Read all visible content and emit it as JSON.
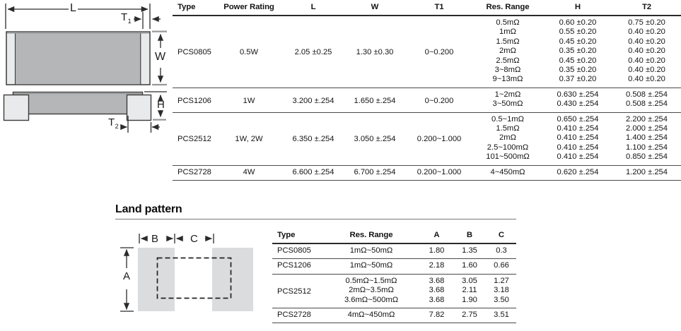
{
  "chip_diagram": {
    "l_label": "L",
    "t1_base": "T",
    "t1_sub": "1",
    "w_label": "W",
    "h_label": "H",
    "t2_base": "T",
    "t2_sub": "2"
  },
  "spec_table": {
    "headers": [
      "Type",
      "Power Rating",
      "L",
      "W",
      "T1",
      "Res. Range",
      "H",
      "T2"
    ],
    "groups": [
      {
        "type": "PCS0805",
        "power_rating": "0.5W",
        "l": "2.05 ±0.25",
        "w": "1.30 ±0.30",
        "t1": "0~0.200",
        "rows": [
          {
            "res_range": "0.5mΩ",
            "h": "0.60 ±0.20",
            "t2": "0.75 ±0.20"
          },
          {
            "res_range": "1mΩ",
            "h": "0.55 ±0.20",
            "t2": "0.40 ±0.20"
          },
          {
            "res_range": "1.5mΩ",
            "h": "0.45 ±0.20",
            "t2": "0.40 ±0.20"
          },
          {
            "res_range": "2mΩ",
            "h": "0.35 ±0.20",
            "t2": "0.40 ±0.20"
          },
          {
            "res_range": "2.5mΩ",
            "h": "0.45 ±0.20",
            "t2": "0.40 ±0.20"
          },
          {
            "res_range": "3~8mΩ",
            "h": "0.35 ±0.20",
            "t2": "0.40 ±0.20"
          },
          {
            "res_range": "9~13mΩ",
            "h": "0.37 ±0.20",
            "t2": "0.40 ±0.20"
          }
        ]
      },
      {
        "type": "PCS1206",
        "power_rating": "1W",
        "l": "3.200 ±.254",
        "w": "1.650 ±.254",
        "t1": "0~0.200",
        "rows": [
          {
            "res_range": "1~2mΩ",
            "h": "0.630 ±.254",
            "t2": "0.508 ±.254"
          },
          {
            "res_range": "3~50mΩ",
            "h": "0.430 ±.254",
            "t2": "0.508 ±.254"
          }
        ]
      },
      {
        "type": "PCS2512",
        "power_rating": "1W, 2W",
        "l": "6.350 ±.254",
        "w": "3.050 ±.254",
        "t1": "0.200~1.000",
        "rows": [
          {
            "res_range": "0.5~1mΩ",
            "h": "0.650 ±.254",
            "t2": "2.200 ±.254"
          },
          {
            "res_range": "1.5mΩ",
            "h": "0.410 ±.254",
            "t2": "2.000 ±.254"
          },
          {
            "res_range": "2mΩ",
            "h": "0.410 ±.254",
            "t2": "1.400 ±.254"
          },
          {
            "res_range": "2.5~100mΩ",
            "h": "0.410 ±.254",
            "t2": "1.100 ±.254"
          },
          {
            "res_range": "101~500mΩ",
            "h": "0.410 ±.254",
            "t2": "0.850 ±.254"
          }
        ]
      },
      {
        "type": "PCS2728",
        "power_rating": "4W",
        "l": "6.600 ±.254",
        "w": "6.700 ±.254",
        "t1": "0.200~1.000",
        "rows": [
          {
            "res_range": "4~450mΩ",
            "h": "0.620 ±.254",
            "t2": "1.200 ±.254"
          }
        ]
      }
    ]
  },
  "land_pattern": {
    "title": "Land pattern",
    "a_label": "A",
    "b_label": "B",
    "c_label": "C",
    "table": {
      "headers": [
        "Type",
        "Res. Range",
        "A",
        "B",
        "C"
      ],
      "groups": [
        {
          "type": "PCS0805",
          "rows": [
            {
              "res_range": "1mΩ~50mΩ",
              "a": "1.80",
              "b": "1.35",
              "c": "0.3"
            }
          ]
        },
        {
          "type": "PCS1206",
          "rows": [
            {
              "res_range": "1mΩ~50mΩ",
              "a": "2.18",
              "b": "1.60",
              "c": "0.66"
            }
          ]
        },
        {
          "type": "PCS2512",
          "rows": [
            {
              "res_range": "0.5mΩ~1.5mΩ",
              "a": "3.68",
              "b": "3.05",
              "c": "1.27"
            },
            {
              "res_range": "2mΩ~3.5mΩ",
              "a": "3.68",
              "b": "2.11",
              "c": "3.18"
            },
            {
              "res_range": "3.6mΩ~500mΩ",
              "a": "3.68",
              "b": "1.90",
              "c": "3.50"
            }
          ]
        },
        {
          "type": "PCS2728",
          "rows": [
            {
              "res_range": "4mΩ~450mΩ",
              "a": "7.82",
              "b": "2.75",
              "c": "3.51"
            }
          ]
        }
      ]
    }
  },
  "colors": {
    "body-gray": "#b4b6b8",
    "terminal-gray": "#e9eaeb",
    "pad-gray": "#dbdcde",
    "edge-dark": "#3c3c3c",
    "dim-dark": "#2b2b2b",
    "rule-heavy": "#2a2a2a",
    "rule-group": "#4a4a4a",
    "text": "#141414"
  }
}
